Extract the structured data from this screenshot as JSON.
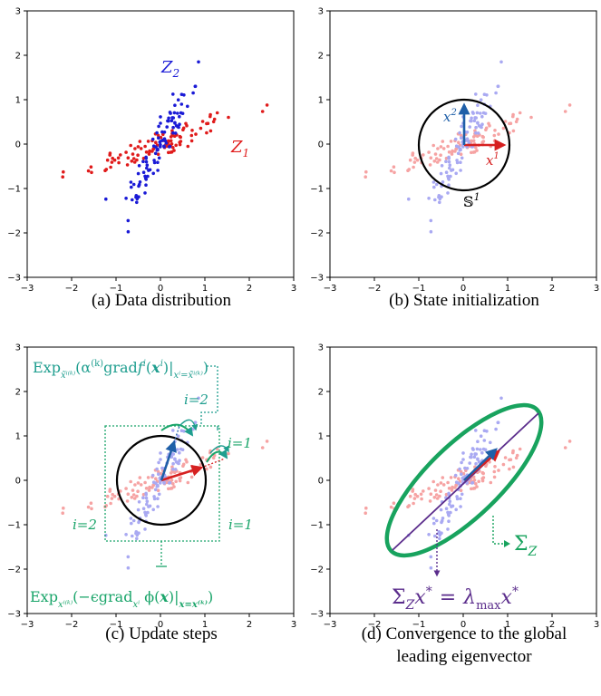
{
  "colors": {
    "z1": "#e01b1b",
    "z2": "#1a1ad6",
    "z1_faded": "#f6a3a3",
    "z2_faded": "#a9a9f2",
    "arrow_red": "#d62020",
    "arrow_blue": "#1f5fa8",
    "teal": "#1f9e8f",
    "green": "#1aa56a",
    "ellipse_green": "#18a35e",
    "purple": "#5b2d8c"
  },
  "chart_data": [
    {
      "id": "a",
      "type": "scatter",
      "caption": "(a) Data distribution",
      "xlim": [
        -3,
        3
      ],
      "ylim": [
        -3,
        3
      ],
      "xticks": [
        "−3",
        "−2",
        "−1",
        "0",
        "1",
        "2",
        "3"
      ],
      "yticks": [
        "−3",
        "−2",
        "−1",
        "0",
        "1",
        "2",
        "3"
      ],
      "series": [
        {
          "name": "Z1",
          "label": "Z",
          "label_sub": "1",
          "style": "z1"
        },
        {
          "name": "Z2",
          "label": "Z",
          "label_sub": "2",
          "style": "z2"
        }
      ],
      "note": "Z1: 100 points spread along the direction y ≈ 0.37x (x from −2.2 to 2.4); Z2: 100 points spread along y ≈ 2x (y from −2.1 to 2.4)."
    },
    {
      "id": "b",
      "type": "scatter",
      "caption": "(b) State initialization",
      "xlim": [
        -3,
        3
      ],
      "ylim": [
        -3,
        3
      ],
      "xticks": [
        "−3",
        "−2",
        "−1",
        "0",
        "1",
        "2",
        "3"
      ],
      "yticks": [
        "−3",
        "−2",
        "−1",
        "0",
        "1",
        "2",
        "3"
      ],
      "annotations": {
        "circle_label": "𝕊",
        "circle_sup": "1",
        "x1": "x",
        "x1_sup": "1",
        "x2": "x",
        "x2_sup": "2"
      }
    },
    {
      "id": "c",
      "type": "scatter",
      "caption": "(c) Update steps",
      "xlim": [
        -3,
        3
      ],
      "ylim": [
        -3,
        3
      ],
      "xticks": [
        "−3",
        "−2",
        "−1",
        "0",
        "1",
        "2",
        "3"
      ],
      "yticks": [
        "−3",
        "−2",
        "−1",
        "0",
        "1",
        "2",
        "3"
      ],
      "annotations": {
        "top_formula": "Exp",
        "bottom_formula": "Exp",
        "i2_upper": "i=2",
        "i1_right": "i=1",
        "i2_lower": "i=2",
        "i1_lower": "i=1"
      }
    },
    {
      "id": "d",
      "type": "scatter",
      "caption": "(d) Convergence to the global",
      "caption2": "leading eigenvector",
      "xlim": [
        -3,
        3
      ],
      "ylim": [
        -3,
        3
      ],
      "xticks": [
        "−3",
        "−2",
        "−1",
        "0",
        "1",
        "2",
        "3"
      ],
      "yticks": [
        "−3",
        "−2",
        "−1",
        "0",
        "1",
        "2",
        "3"
      ],
      "annotations": {
        "sigma_label": "Σ",
        "sigma_sub": "Z",
        "eig_lhs": "Σ",
        "eig_lhs_sub": "Z",
        "eig_x": "x",
        "eig_star": "*",
        "eig_eq": "=",
        "eig_lambda": "λ",
        "eig_lambda_sub": "max"
      }
    }
  ]
}
